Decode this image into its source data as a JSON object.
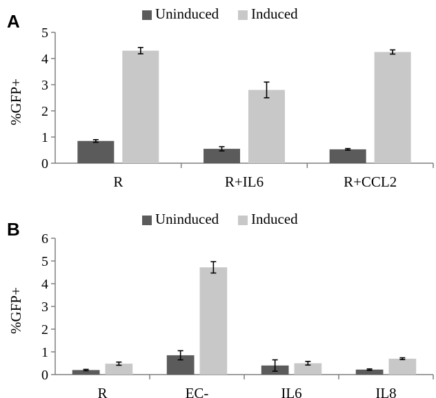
{
  "colors": {
    "uninduced": "#5b5b5b",
    "induced": "#c8c8c8",
    "axis": "#7f7f7f",
    "text": "#000000"
  },
  "chart_data": [
    {
      "panel_label": "A",
      "type": "bar",
      "categories": [
        "R",
        "R+IL6",
        "R+CCL2"
      ],
      "series": [
        {
          "name": "Uninduced",
          "values": [
            0.85,
            0.55,
            0.53
          ],
          "errors": [
            0.05,
            0.08,
            0.03
          ]
        },
        {
          "name": "Induced",
          "values": [
            4.3,
            2.8,
            4.25
          ],
          "errors": [
            0.12,
            0.3,
            0.08
          ]
        }
      ],
      "ylabel": "%GFP+",
      "xlabel": "",
      "ylim": [
        0,
        5
      ],
      "yticks": [
        "0",
        "1",
        "2",
        "3",
        "4",
        "5"
      ],
      "legend": "top",
      "grid": false
    },
    {
      "panel_label": "B",
      "type": "bar",
      "categories": [
        "R",
        "EC-",
        "IL6",
        "IL8"
      ],
      "series": [
        {
          "name": "Uninduced",
          "values": [
            0.2,
            0.85,
            0.4,
            0.22
          ],
          "errors": [
            0.03,
            0.2,
            0.25,
            0.03
          ]
        },
        {
          "name": "Induced",
          "values": [
            0.48,
            4.72,
            0.5,
            0.7
          ],
          "errors": [
            0.07,
            0.25,
            0.08,
            0.04
          ]
        }
      ],
      "ylabel": "%GFP+",
      "xlabel": "",
      "ylim": [
        0,
        6
      ],
      "yticks": [
        "0",
        "1",
        "2",
        "3",
        "4",
        "5",
        "6"
      ],
      "legend": "top",
      "grid": false
    }
  ]
}
